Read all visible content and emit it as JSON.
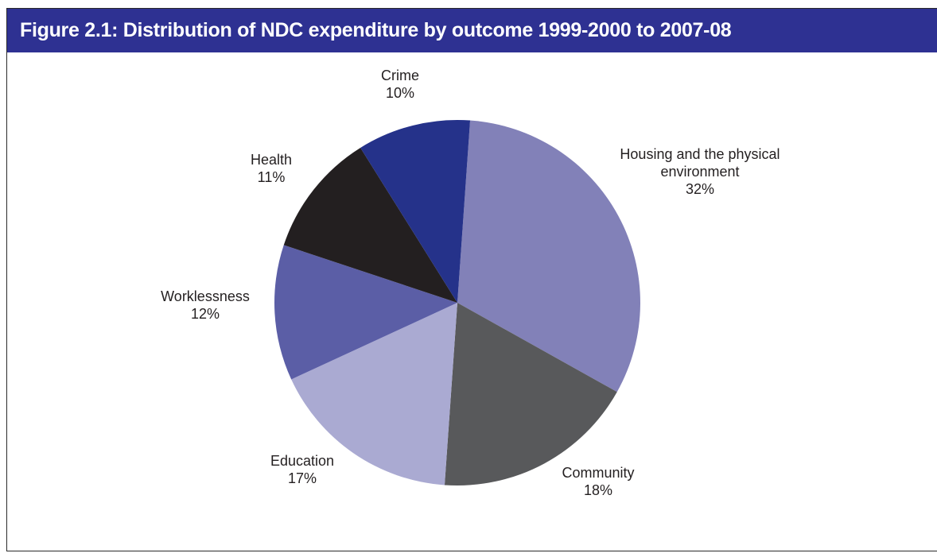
{
  "chart_data": {
    "type": "pie",
    "title": "Figure 2.1: Distribution of NDC expenditure by outcome 1999-2000 to 2007-08",
    "slices": [
      {
        "label": "Housing and the physical environment",
        "label_lines": [
          "Housing and the physical",
          "environment"
        ],
        "value": 32,
        "value_label": "32%",
        "color": "#8281b8"
      },
      {
        "label": "Community",
        "label_lines": [
          "Community"
        ],
        "value": 18,
        "value_label": "18%",
        "color": "#58595b"
      },
      {
        "label": "Education",
        "label_lines": [
          "Education"
        ],
        "value": 17,
        "value_label": "17%",
        "color": "#aaaad2"
      },
      {
        "label": "Worklessness",
        "label_lines": [
          "Worklessness"
        ],
        "value": 12,
        "value_label": "12%",
        "color": "#5b5ea6"
      },
      {
        "label": "Health",
        "label_lines": [
          "Health"
        ],
        "value": 11,
        "value_label": "11%",
        "color": "#231f20"
      },
      {
        "label": "Crime",
        "label_lines": [
          "Crime"
        ],
        "value": 10,
        "value_label": "10%",
        "color": "#25328a"
      }
    ],
    "legend": "none"
  }
}
